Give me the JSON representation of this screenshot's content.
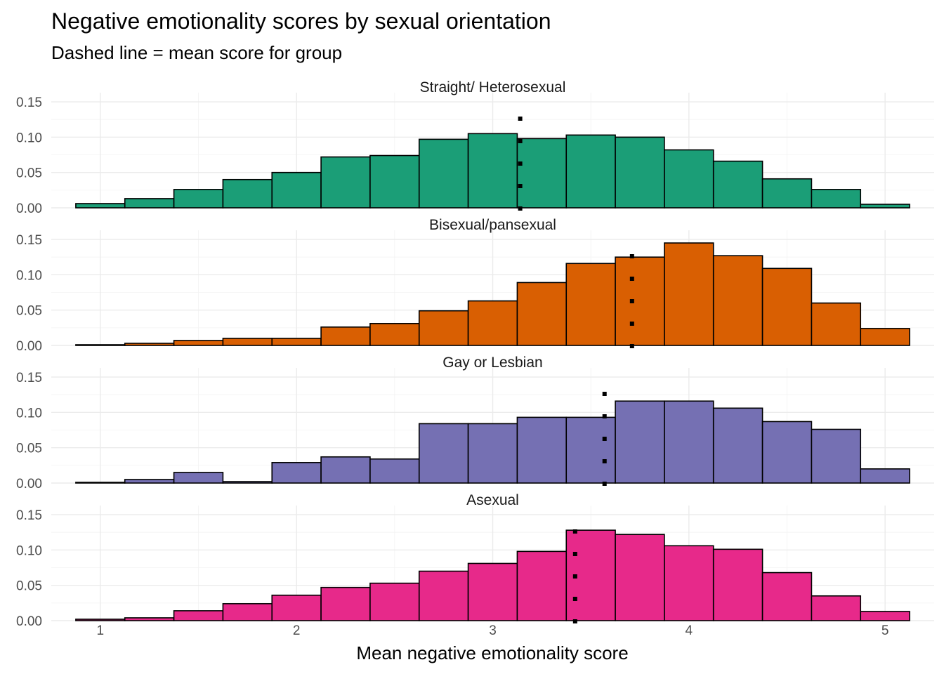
{
  "chart_data": {
    "type": "histogram",
    "title": "Negative emotionality scores by sexual orientation",
    "subtitle": "Dashed line = mean score for group",
    "xlabel": "Mean negative emotionality score",
    "ylabel": "",
    "x_ticks": [
      1,
      2,
      3,
      4,
      5
    ],
    "xlim": [
      0.75,
      5.25
    ],
    "y_ticks": [
      "0.00",
      "0.05",
      "0.10",
      "0.15"
    ],
    "ylim": [
      0,
      0.155
    ],
    "bin_edges": [
      0.875,
      1.125,
      1.375,
      1.625,
      1.875,
      2.125,
      2.375,
      2.625,
      2.875,
      3.125,
      3.375,
      3.625,
      3.875,
      4.125,
      4.375,
      4.625,
      4.875,
      5.125
    ],
    "panels": [
      {
        "name": "Straight/ Heterosexual",
        "color": "#1B9E77",
        "mean": 3.14,
        "values": [
          0.006,
          0.013,
          0.026,
          0.04,
          0.05,
          0.072,
          0.074,
          0.097,
          0.105,
          0.098,
          0.103,
          0.1,
          0.082,
          0.066,
          0.041,
          0.026,
          0.005
        ]
      },
      {
        "name": "Bisexual/pansexual",
        "color": "#D95F02",
        "mean": 3.71,
        "values": [
          0.001,
          0.003,
          0.007,
          0.01,
          0.01,
          0.026,
          0.031,
          0.049,
          0.063,
          0.089,
          0.116,
          0.125,
          0.145,
          0.127,
          0.109,
          0.06,
          0.024
        ]
      },
      {
        "name": "Gay or Lesbian",
        "color": "#7570B3",
        "mean": 3.57,
        "values": [
          0.001,
          0.005,
          0.015,
          0.002,
          0.029,
          0.037,
          0.034,
          0.084,
          0.084,
          0.093,
          0.093,
          0.116,
          0.116,
          0.106,
          0.087,
          0.076,
          0.02
        ]
      },
      {
        "name": "Asexual",
        "color": "#E7298A",
        "mean": 3.42,
        "values": [
          0.002,
          0.004,
          0.014,
          0.024,
          0.036,
          0.047,
          0.053,
          0.07,
          0.081,
          0.098,
          0.128,
          0.122,
          0.106,
          0.101,
          0.068,
          0.035,
          0.013
        ]
      }
    ]
  }
}
